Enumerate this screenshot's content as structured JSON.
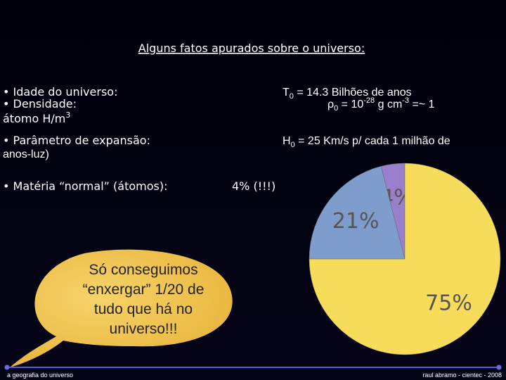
{
  "title": "Alguns fatos apurados sobre o universo:",
  "facts": {
    "age_label": "• Idade do universo:",
    "density_label": "• Densidade:",
    "density_unit": [
      "átomo H/m",
      "3"
    ],
    "age_value": [
      "T",
      "0",
      " = 14.3 Bilhões de anos"
    ],
    "density_value": [
      "ρ",
      "0",
      " = 10",
      "-28",
      " g cm",
      "-3",
      " =~ 1"
    ],
    "expansion_label": "• Parâmetro de expansão:",
    "expansion_value": [
      "H",
      "0",
      " = 25 Km/s p/ cada 1 milhão de"
    ],
    "expansion_cont": "anos-luz)",
    "matter_label": "• Matéria “normal” (átomos):",
    "matter_value": "4% (!!!)"
  },
  "bubble": [
    "Só conseguimos",
    "“enxergar” 1/20 de",
    "tudo que há no",
    "universo!!!"
  ],
  "footer": {
    "left": "a geografia do universo",
    "right": "raul abramo - cientec - 2008"
  },
  "chart_data": {
    "type": "pie",
    "values": [
      4,
      21,
      75
    ],
    "value_labels": [
      "4%",
      "21%",
      "75%"
    ],
    "colors": [
      "#9a80cc",
      "#7f9dcc",
      "#f7dc5c"
    ]
  }
}
